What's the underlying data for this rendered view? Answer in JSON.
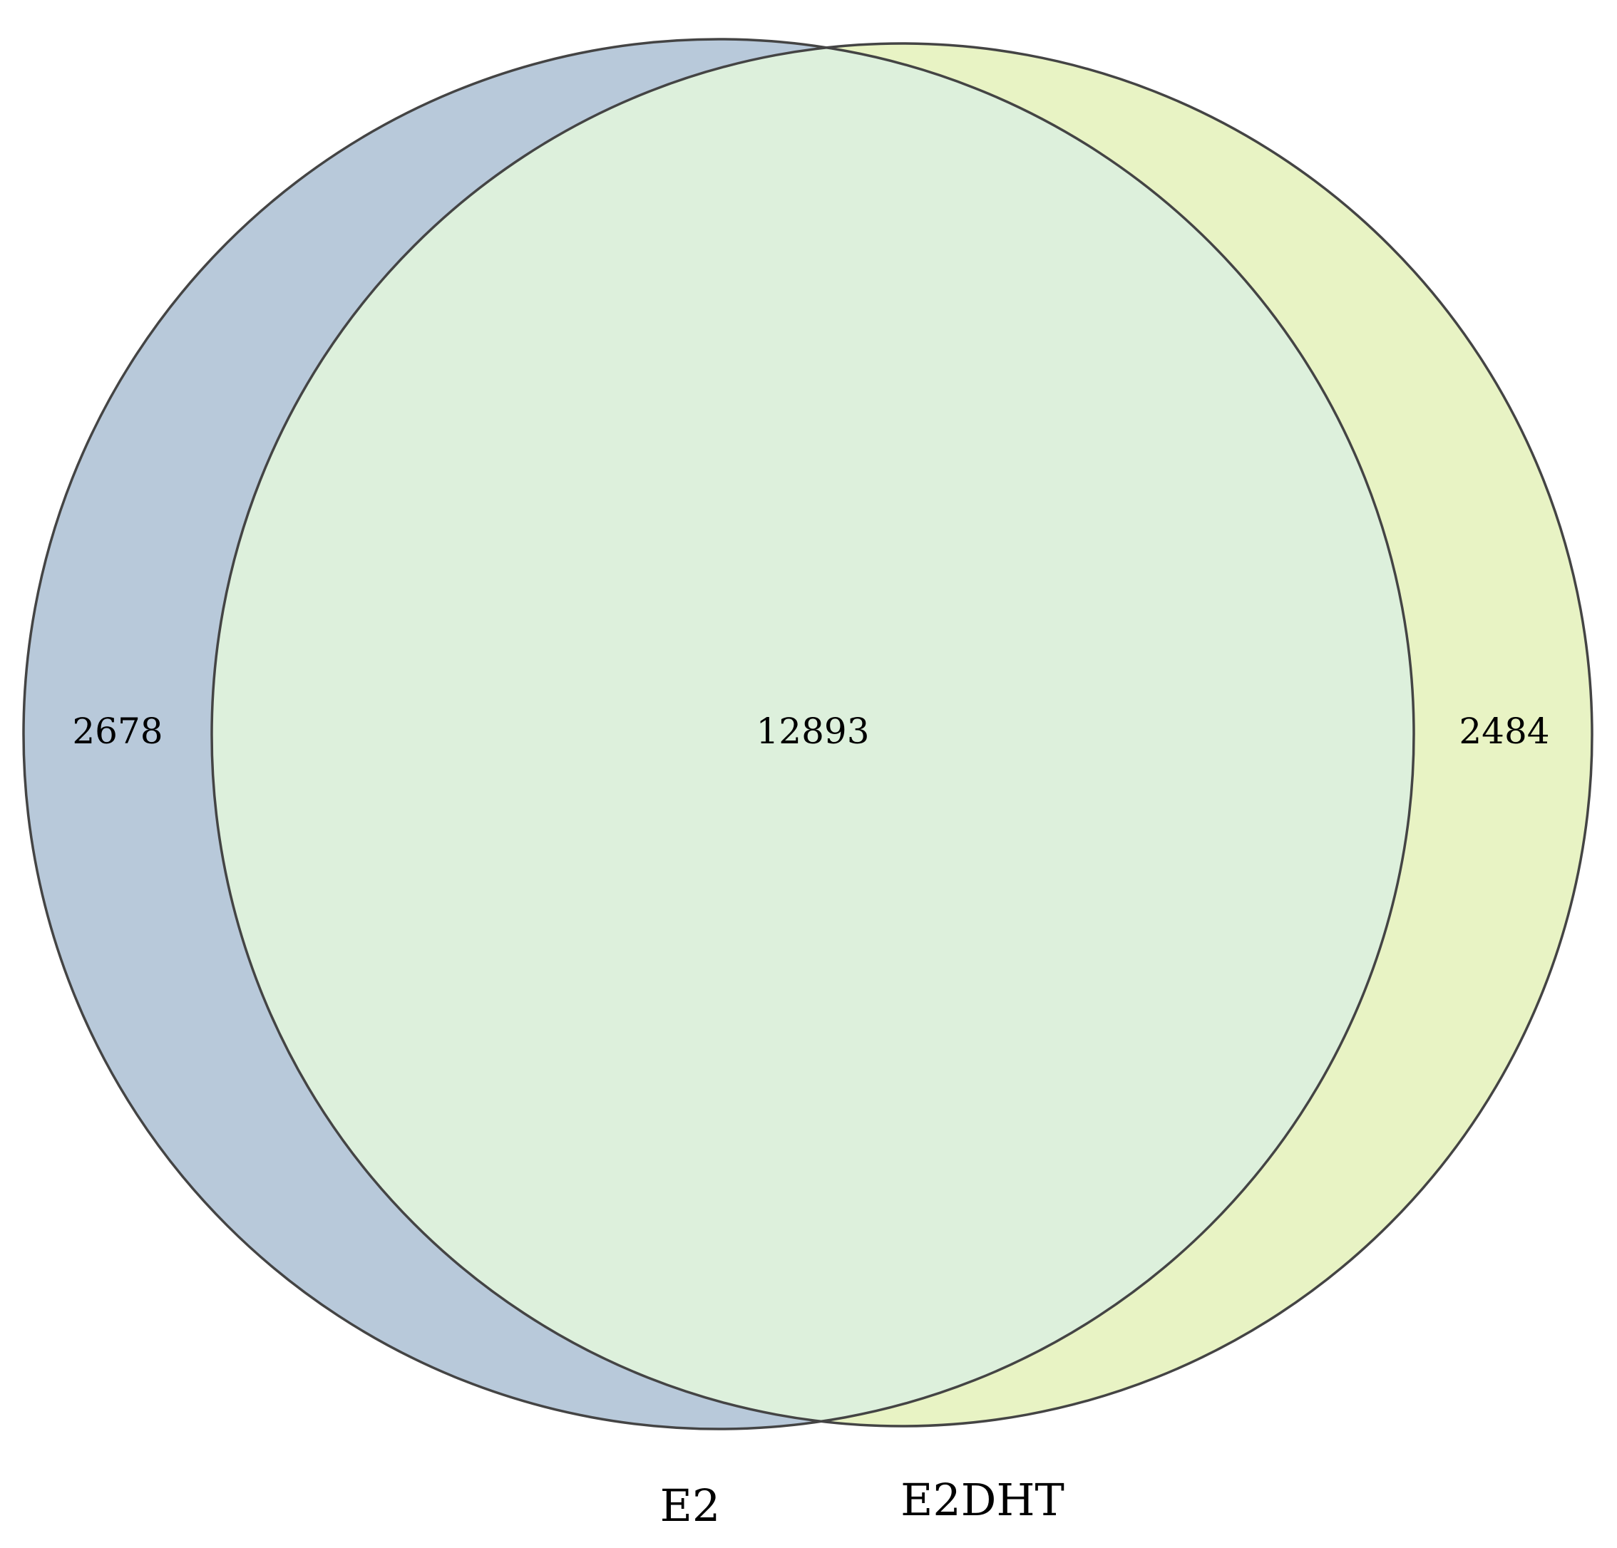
{
  "venn": {
    "sets": [
      {
        "name": "E2",
        "color": "#b8c9da"
      },
      {
        "name": "E2DHT",
        "color": "#e8f3c4"
      }
    ],
    "overlap_color": "#ddf0dc",
    "outline_color": "#444444",
    "counts": {
      "only_e2": "2678",
      "both": "12893",
      "only_e2dht": "2484"
    }
  }
}
